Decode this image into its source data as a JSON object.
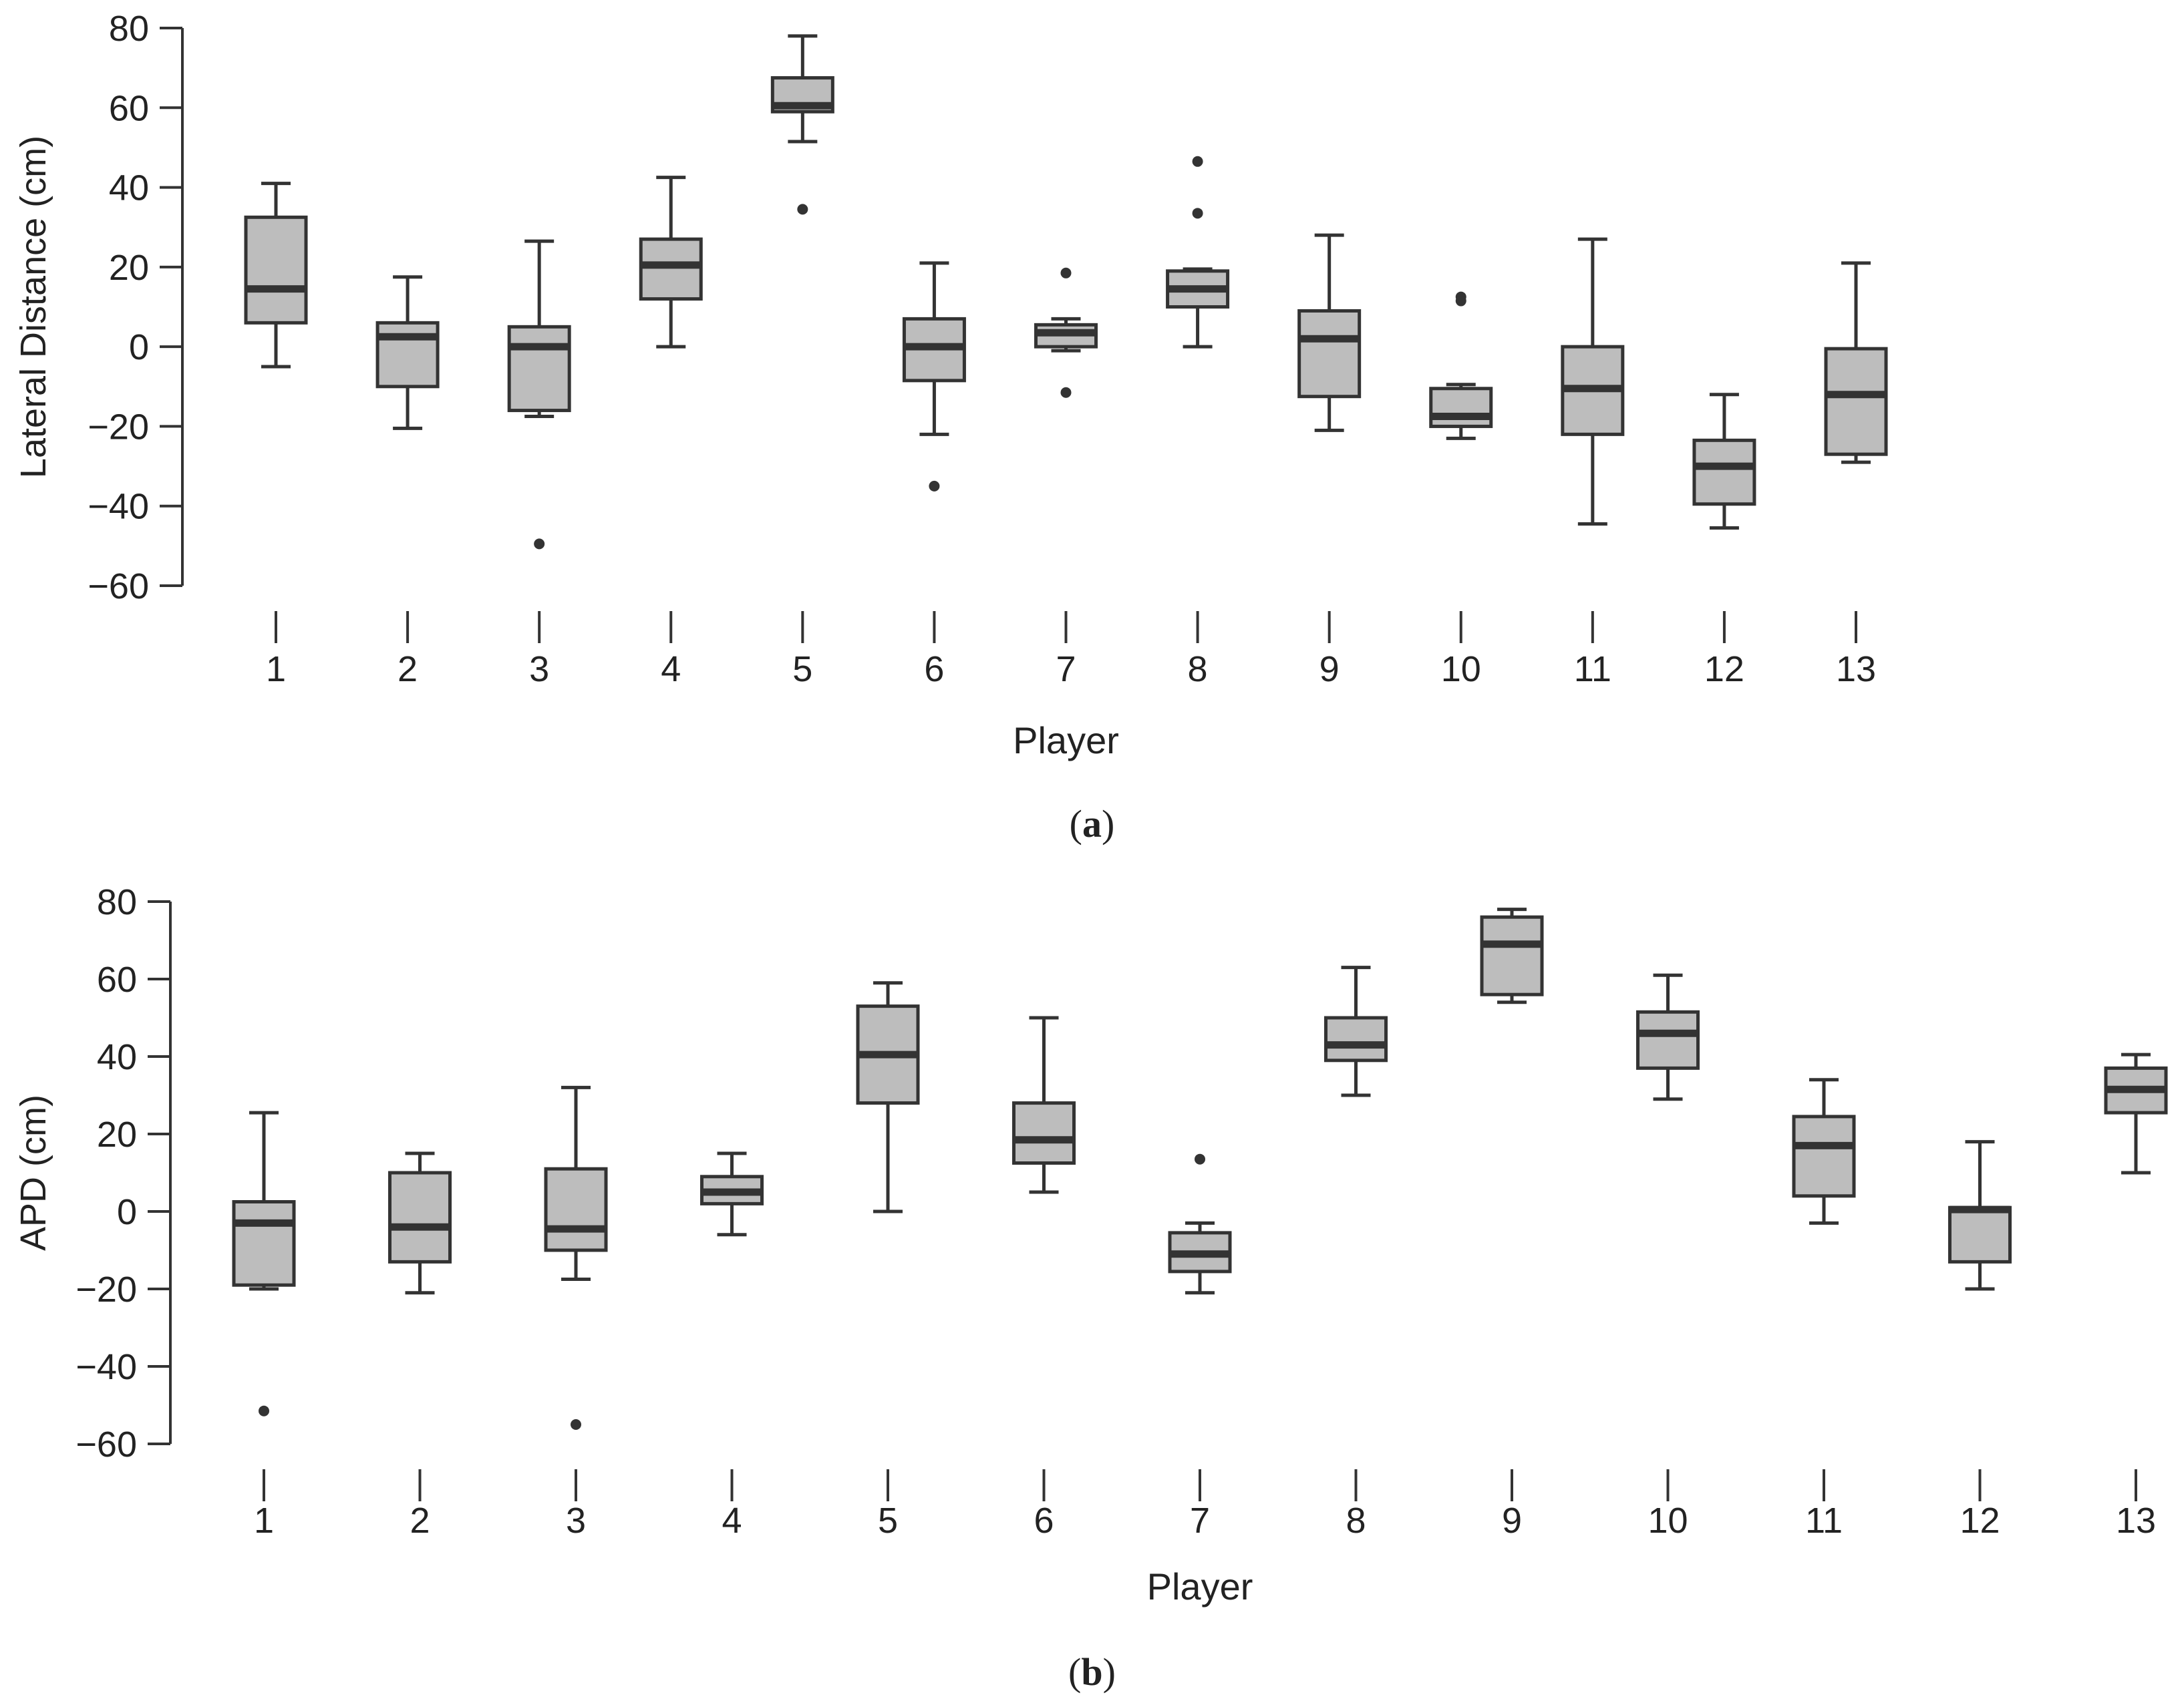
{
  "colors": {
    "box_fill": "#bdbdbd",
    "stroke": "#333333",
    "outlier": "#333333",
    "text": "#222222"
  },
  "panels": [
    {
      "label_open": "(",
      "label_letter": "a",
      "label_close": ")"
    },
    {
      "label_open": "(",
      "label_letter": "b",
      "label_close": ")"
    }
  ],
  "chart_data": [
    {
      "type": "box",
      "xlabel": "Player",
      "ylabel": "Lateral Distance (cm)",
      "ylim": [
        -60,
        80
      ],
      "yticks": [
        80,
        60,
        40,
        20,
        0,
        -20,
        -40,
        -60
      ],
      "ytick_labels": [
        "80",
        "60",
        "40",
        "20",
        "0",
        "−20",
        "−40",
        "−60"
      ],
      "categories": [
        "1",
        "2",
        "3",
        "4",
        "5",
        "6",
        "7",
        "8",
        "9",
        "10",
        "11",
        "12",
        "13"
      ],
      "boxes": [
        {
          "whisker_low": -5,
          "q1": 6,
          "median": 14.5,
          "q3": 32.5,
          "whisker_high": 41,
          "outliers": []
        },
        {
          "whisker_low": -20.5,
          "q1": -10,
          "median": 2.5,
          "q3": 6,
          "whisker_high": 17.5,
          "outliers": []
        },
        {
          "whisker_low": -17.5,
          "q1": -16,
          "median": 0,
          "q3": 5,
          "whisker_high": 26.5,
          "outliers": [
            -49.5
          ]
        },
        {
          "whisker_low": 0,
          "q1": 12,
          "median": 20.5,
          "q3": 27,
          "whisker_high": 42.5,
          "outliers": []
        },
        {
          "whisker_low": 51.5,
          "q1": 59,
          "median": 60.5,
          "q3": 67.5,
          "whisker_high": 78,
          "outliers": [
            34.5
          ]
        },
        {
          "whisker_low": -22,
          "q1": -8.5,
          "median": 0,
          "q3": 7,
          "whisker_high": 21,
          "outliers": [
            -35
          ]
        },
        {
          "whisker_low": -1,
          "q1": 0,
          "median": 3.5,
          "q3": 5.5,
          "whisker_high": 7,
          "outliers": [
            18.5,
            -11.5
          ]
        },
        {
          "whisker_low": 0,
          "q1": 10,
          "median": 14.5,
          "q3": 19,
          "whisker_high": 19.5,
          "outliers": [
            46.5,
            33.5
          ]
        },
        {
          "whisker_low": -21,
          "q1": -12.5,
          "median": 2,
          "q3": 9,
          "whisker_high": 28,
          "outliers": []
        },
        {
          "whisker_low": -23,
          "q1": -20,
          "median": -17.5,
          "q3": -10.5,
          "whisker_high": -9.5,
          "outliers": [
            12.5,
            11.5
          ]
        },
        {
          "whisker_low": -44.5,
          "q1": -22,
          "median": -10.5,
          "q3": 0,
          "whisker_high": 27,
          "outliers": []
        },
        {
          "whisker_low": -45.5,
          "q1": -39.5,
          "median": -30,
          "q3": -23.5,
          "whisker_high": -12,
          "outliers": []
        },
        {
          "whisker_low": -29,
          "q1": -27,
          "median": -12,
          "q3": -0.5,
          "whisker_high": 21,
          "outliers": []
        }
      ]
    },
    {
      "type": "box",
      "xlabel": "Player",
      "ylabel": "APD (cm)",
      "ylim": [
        -60,
        80
      ],
      "yticks": [
        80,
        60,
        40,
        20,
        0,
        -20,
        -40,
        -60
      ],
      "ytick_labels": [
        "80",
        "60",
        "40",
        "20",
        "0",
        "−20",
        "−40",
        "−60"
      ],
      "categories": [
        "1",
        "2",
        "3",
        "4",
        "5",
        "6",
        "7",
        "8",
        "9",
        "10",
        "11",
        "12",
        "13"
      ],
      "boxes": [
        {
          "whisker_low": -20,
          "q1": -19,
          "median": -3,
          "q3": 2.5,
          "whisker_high": 25.5,
          "outliers": [
            -51.5
          ]
        },
        {
          "whisker_low": -21,
          "q1": -13,
          "median": -4,
          "q3": 10,
          "whisker_high": 15,
          "outliers": []
        },
        {
          "whisker_low": -17.5,
          "q1": -10,
          "median": -4.5,
          "q3": 11,
          "whisker_high": 32,
          "outliers": [
            -55
          ]
        },
        {
          "whisker_low": -6,
          "q1": 2,
          "median": 5,
          "q3": 9,
          "whisker_high": 15,
          "outliers": []
        },
        {
          "whisker_low": 0,
          "q1": 28,
          "median": 40.5,
          "q3": 53,
          "whisker_high": 59,
          "outliers": []
        },
        {
          "whisker_low": 5,
          "q1": 12.5,
          "median": 18.5,
          "q3": 28,
          "whisker_high": 50,
          "outliers": []
        },
        {
          "whisker_low": -21,
          "q1": -15.5,
          "median": -11,
          "q3": -5.5,
          "whisker_high": -3,
          "outliers": [
            13.5
          ]
        },
        {
          "whisker_low": 30,
          "q1": 39,
          "median": 43,
          "q3": 50,
          "whisker_high": 63,
          "outliers": []
        },
        {
          "whisker_low": 54,
          "q1": 56,
          "median": 69,
          "q3": 76,
          "whisker_high": 78,
          "outliers": []
        },
        {
          "whisker_low": 29,
          "q1": 37,
          "median": 46,
          "q3": 51.5,
          "whisker_high": 61,
          "outliers": []
        },
        {
          "whisker_low": -3,
          "q1": 4,
          "median": 17,
          "q3": 24.5,
          "whisker_high": 34,
          "outliers": []
        },
        {
          "whisker_low": -20,
          "q1": -13,
          "median": 0.5,
          "q3": 1,
          "whisker_high": 18,
          "outliers": []
        },
        {
          "whisker_low": 10,
          "q1": 25.5,
          "median": 31.5,
          "q3": 37,
          "whisker_high": 40.5,
          "outliers": []
        }
      ]
    }
  ]
}
